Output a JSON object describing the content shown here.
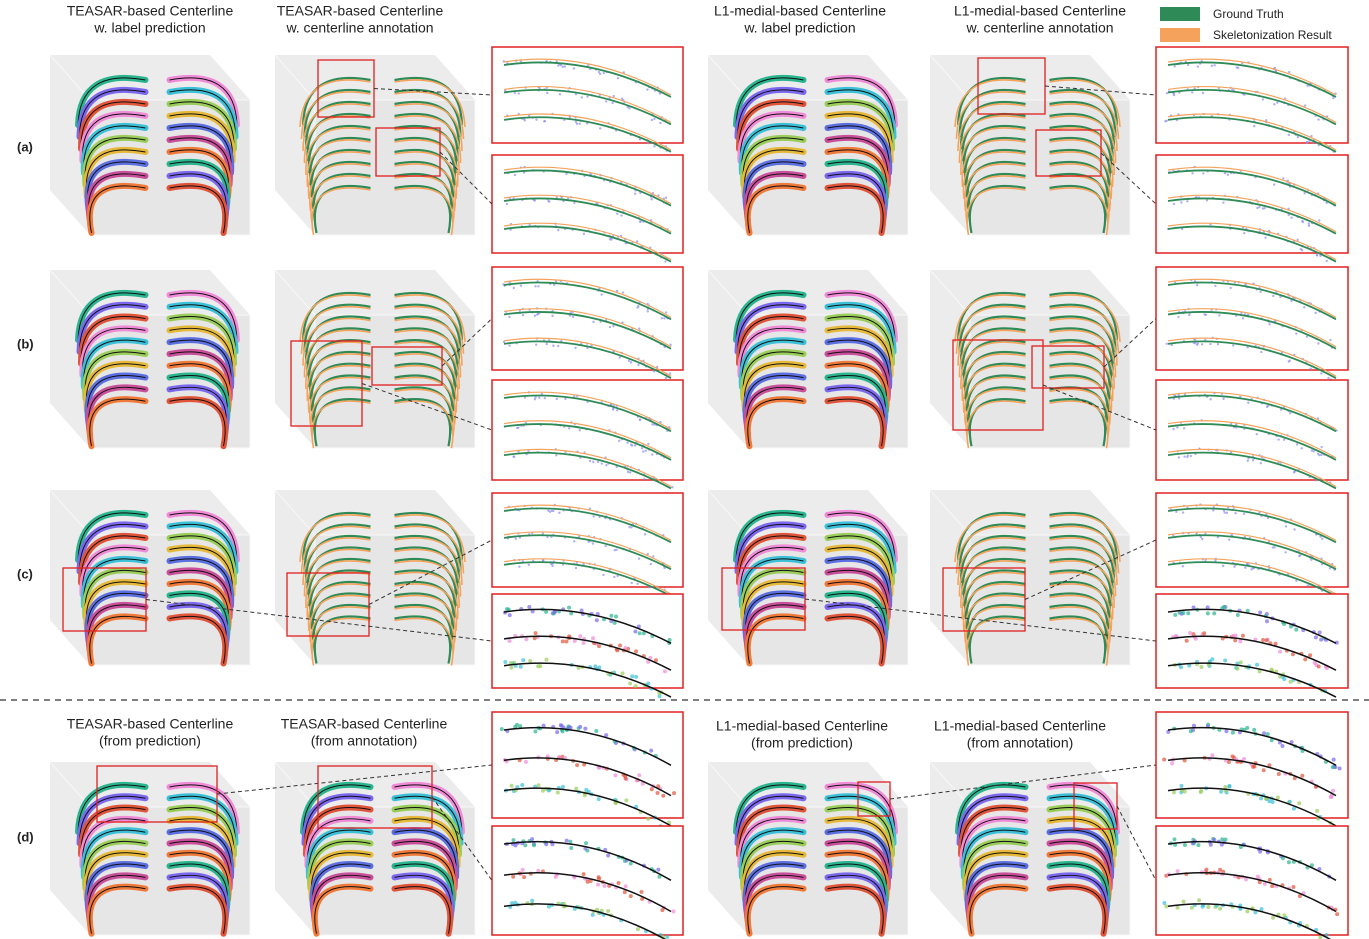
{
  "column_headers": [
    [
      "TEASAR-based Centerline",
      "w. label prediction"
    ],
    [
      "TEASAR-based Centerline",
      "w. centerline annotation"
    ],
    [
      "L1-medial-based Centerline",
      "w. label prediction"
    ],
    [
      "L1-medial-based Centerline",
      "w. centerline annotation"
    ]
  ],
  "bottom_headers": [
    [
      "TEASAR-based Centerline",
      "(from prediction)"
    ],
    [
      "TEASAR-based Centerline",
      "(from annotation)"
    ],
    [
      "L1-medial-based Centerline",
      "(from prediction)"
    ],
    [
      "L1-medial-based Centerline",
      "(from annotation)"
    ]
  ],
  "row_labels": [
    "(a)",
    "(b)",
    "(c)",
    "(d)"
  ],
  "legend": [
    {
      "label": "Ground Truth",
      "color": "#2e8b57"
    },
    {
      "label": "Skeletonization Result",
      "color": "#f5a35c"
    }
  ]
}
